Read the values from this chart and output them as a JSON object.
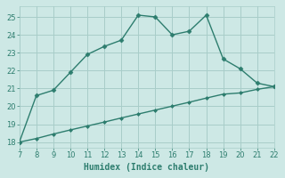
{
  "xlabel": "Humidex (Indice chaleur)",
  "background_color": "#cde8e5",
  "line_color": "#2d7d6e",
  "grid_color": "#a8cdc9",
  "curve1_x": [
    7,
    8,
    9,
    10,
    11,
    12,
    13,
    14,
    15,
    16,
    17,
    18,
    19,
    20,
    21,
    22
  ],
  "curve1_y": [
    18.0,
    20.6,
    20.9,
    21.9,
    22.9,
    23.35,
    23.7,
    25.1,
    25.0,
    24.0,
    24.2,
    25.1,
    22.65,
    22.1,
    21.3,
    21.1
  ],
  "curve2_x": [
    7,
    8,
    9,
    10,
    11,
    12,
    13,
    14,
    15,
    16,
    17,
    18,
    19,
    20,
    21,
    22
  ],
  "curve2_y": [
    18.0,
    18.2,
    18.45,
    18.68,
    18.9,
    19.12,
    19.35,
    19.57,
    19.79,
    20.01,
    20.23,
    20.46,
    20.68,
    20.75,
    20.95,
    21.1
  ],
  "xlim": [
    7,
    22
  ],
  "ylim": [
    17.7,
    25.6
  ],
  "xticks": [
    7,
    8,
    9,
    10,
    11,
    12,
    13,
    14,
    15,
    16,
    17,
    18,
    19,
    20,
    21,
    22
  ],
  "yticks": [
    18,
    19,
    20,
    21,
    22,
    23,
    24,
    25
  ],
  "marker": "D",
  "markersize": 2.5,
  "linewidth": 1.0
}
